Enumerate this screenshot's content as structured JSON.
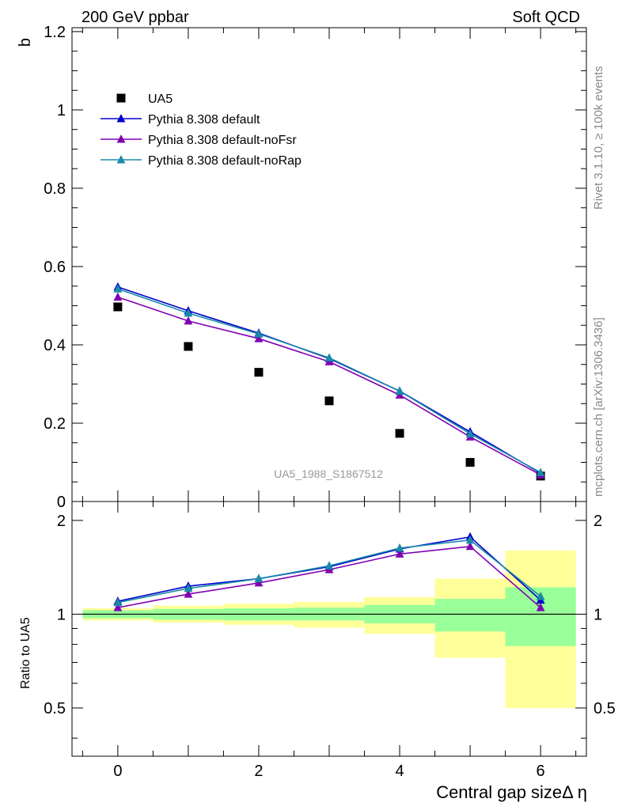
{
  "header": {
    "left": "200 GeV ppbar",
    "right": "Soft QCD"
  },
  "side": {
    "rivet": "Rivet 3.1.10, ≥ 100k events",
    "mcplots": "mcplots.cern.ch [arXiv:1306.3436]"
  },
  "chart_data": [
    {
      "type": "scatter",
      "panel": "main",
      "title": "",
      "ylabel": "b",
      "watermark": "UA5_1988_S1867512",
      "xlim": [
        -0.65,
        6.65
      ],
      "ylim": [
        0,
        1.21
      ],
      "yticks": [
        0,
        0.2,
        0.4,
        0.6,
        0.8,
        1,
        1.2
      ],
      "ytick_labels": [
        "0",
        "0.2",
        "0.4",
        "0.6",
        "0.8",
        "1",
        "1.2"
      ],
      "x": [
        0,
        1,
        2,
        3,
        4,
        5,
        6
      ],
      "series": [
        {
          "name": "UA5",
          "style": "marker",
          "color": "#000000",
          "values": [
            0.497,
            0.396,
            0.33,
            0.257,
            0.174,
            0.1,
            0.065
          ]
        },
        {
          "name": "Pythia 8.308 default",
          "style": "line",
          "color": "#0000cc",
          "values": [
            0.548,
            0.487,
            0.43,
            0.365,
            0.282,
            0.178,
            0.072
          ]
        },
        {
          "name": "Pythia 8.308 default-noFsr",
          "style": "line",
          "color": "#8000b0",
          "values": [
            0.522,
            0.461,
            0.416,
            0.357,
            0.272,
            0.165,
            0.068
          ]
        },
        {
          "name": "Pythia 8.308 default-noRap",
          "style": "line",
          "color": "#1a8aa8",
          "values": [
            0.543,
            0.481,
            0.428,
            0.367,
            0.282,
            0.173,
            0.074
          ]
        }
      ],
      "legend_placement": "top-left"
    },
    {
      "type": "line",
      "panel": "ratio",
      "ylabel": "Ratio to UA5",
      "xlabel": "Central gap sizeΔ η",
      "xlim": [
        -0.65,
        6.65
      ],
      "ylim": [
        0.35,
        2.3
      ],
      "yticks": [
        0.5,
        1,
        2
      ],
      "ytick_labels": [
        "0.5",
        "1",
        "2"
      ],
      "xticks": [
        0,
        2,
        4,
        6
      ],
      "xtick_labels": [
        "0",
        "2",
        "4",
        "6"
      ],
      "x": [
        0,
        1,
        2,
        3,
        4,
        5,
        6
      ],
      "bands": {
        "inner_color": "#99ff99",
        "outer_color": "#ffff99",
        "inner": [
          [
            0.97,
            1.03
          ],
          [
            0.96,
            1.04
          ],
          [
            0.955,
            1.045
          ],
          [
            0.955,
            1.05
          ],
          [
            0.935,
            1.07
          ],
          [
            0.88,
            1.12
          ],
          [
            0.79,
            1.22
          ]
        ],
        "outer": [
          [
            0.955,
            1.045
          ],
          [
            0.94,
            1.065
          ],
          [
            0.925,
            1.08
          ],
          [
            0.905,
            1.095
          ],
          [
            0.865,
            1.135
          ],
          [
            0.725,
            1.3
          ],
          [
            0.5,
            1.6
          ]
        ]
      },
      "series": [
        {
          "name": "Pythia 8.308 default",
          "color": "#0000cc",
          "values": [
            1.1,
            1.23,
            1.3,
            1.42,
            1.62,
            1.77,
            1.11
          ]
        },
        {
          "name": "Pythia 8.308 default-noFsr",
          "color": "#8000b0",
          "values": [
            1.05,
            1.16,
            1.26,
            1.39,
            1.56,
            1.65,
            1.05
          ]
        },
        {
          "name": "Pythia 8.308 default-noRap",
          "color": "#1a8aa8",
          "values": [
            1.09,
            1.21,
            1.3,
            1.43,
            1.63,
            1.73,
            1.14
          ]
        }
      ]
    }
  ]
}
